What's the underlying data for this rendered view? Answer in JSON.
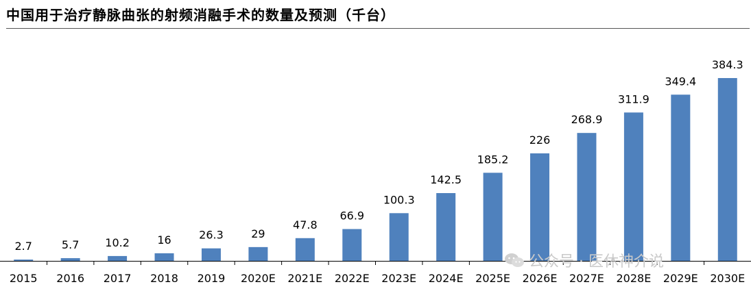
{
  "title": "中国用于治疗静脉曲张的射频消融手术的数量及预测（千台）",
  "watermark": {
    "text": "公众号 · 医休神介说",
    "icon": "wechat-icon",
    "color": "#c9c9c9"
  },
  "chart_data": {
    "type": "bar",
    "title": "中国用于治疗静脉曲张的射频消融手术的数量及预测（千台）",
    "xlabel": "",
    "ylabel": "",
    "categories": [
      "2015",
      "2016",
      "2017",
      "2018",
      "2019",
      "2020E",
      "2021E",
      "2022E",
      "2023E",
      "2024E",
      "2025E",
      "2026E",
      "2027E",
      "2028E",
      "2029E",
      "2030E"
    ],
    "values": [
      2.7,
      5.7,
      10.2,
      16,
      26.3,
      29,
      47.8,
      66.9,
      100.3,
      142.5,
      185.2,
      226,
      268.9,
      311.9,
      349.4,
      384.3
    ],
    "value_labels": [
      "2.7",
      "5.7",
      "10.2",
      "16",
      "26.3",
      "29",
      "47.8",
      "66.9",
      "100.3",
      "142.5",
      "185.2",
      "226",
      "268.9",
      "311.9",
      "349.4",
      "384.3"
    ],
    "ylim": [
      0,
      384.3
    ],
    "grid": false,
    "legend": "none",
    "bar_color": "#4f81bd",
    "axis_color": "#000000"
  }
}
